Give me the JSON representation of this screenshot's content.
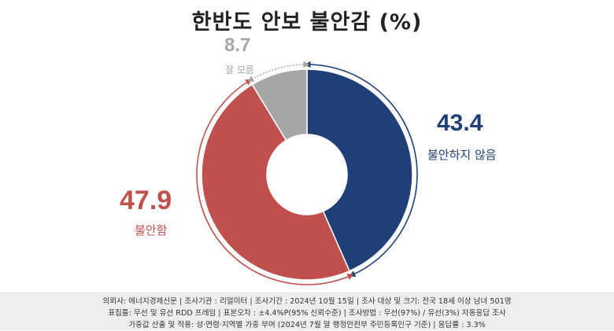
{
  "title": "한반도 안보 불안감 (%)",
  "chart_data": {
    "type": "pie",
    "title": "한반도 안보 불안감 (%)",
    "slices": [
      {
        "label": "불안하지 않음",
        "value": 43.4,
        "value_label": "43.4",
        "color": "#1f4077"
      },
      {
        "label": "불안함",
        "value": 47.9,
        "value_label": "47.9",
        "color": "#c0504d"
      },
      {
        "label": "잘 모름",
        "value": 8.7,
        "value_label": "8.7",
        "color": "#a6a6a6"
      }
    ]
  },
  "footer": {
    "line1": "의뢰사: 에너지경제신문  |  조사기관 : 리얼미터  |  조사기간 : 2024년 10월 15일  |  조사 대상 및 크기: 전국 18세 이상 남녀 501명",
    "line2": "표집틀: 무선 및 유선 RDD 프레임  |  표본오차 : ±4.4%P(95% 신뢰수준)  |  조사방법 : 무선(97%) / 유선(3%) 자동응답 조사",
    "line3": "가중값 산출 및 적용: 성·연령·지역별 가중 부여 (2024년 7월 말 행정안전부 주민등록인구 기준) | 응답률 : 3.3%"
  }
}
